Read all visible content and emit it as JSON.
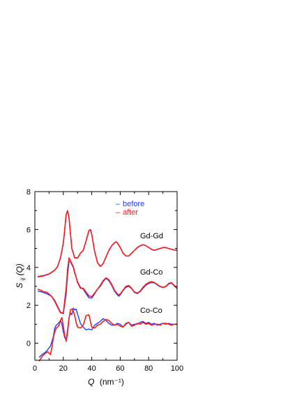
{
  "chart_data": {
    "type": "line",
    "xlabel": "Q",
    "xlabel_unit": "(nm⁻¹)",
    "ylabel": "S",
    "ylabel_sub": "ij",
    "ylabel_arg": "(Q)",
    "xlim": [
      0,
      100
    ],
    "ylim": [
      -0.9,
      8
    ],
    "xticks": [
      0,
      20,
      40,
      60,
      80,
      100
    ],
    "yticks": [
      0,
      2,
      4,
      6,
      8
    ],
    "grid": false,
    "legend_position": "top-right",
    "legend": [
      {
        "name": "before",
        "color": "#1f3fff"
      },
      {
        "name": "after",
        "color": "#ff1a1a"
      }
    ],
    "colors": {
      "before": "#1f3fff",
      "after": "#ff1a1a"
    },
    "curve_labels": [
      {
        "text": "Gd-Gd",
        "x": 86,
        "y": 5.7
      },
      {
        "text": "Gd-Co",
        "x": 86,
        "y": 3.7
      },
      {
        "text": "Co-Co",
        "x": 86,
        "y": 1.2
      }
    ],
    "series": [
      {
        "name": "Gd-Gd after",
        "x": [
          2,
          6,
          10,
          14,
          16,
          18,
          20,
          21,
          22,
          23,
          24,
          25,
          26,
          28,
          30,
          32,
          34,
          36,
          38,
          39,
          40,
          42,
          44,
          46,
          48,
          50,
          52,
          54,
          56,
          57,
          58,
          60,
          62,
          64,
          66,
          68,
          70,
          72,
          74,
          76,
          78,
          80,
          82,
          84,
          86,
          88,
          90,
          92,
          94,
          96,
          98,
          100
        ],
        "y": [
          3.5,
          3.55,
          3.65,
          3.85,
          4.05,
          4.5,
          5.3,
          6.0,
          6.8,
          7.0,
          6.6,
          5.8,
          5.0,
          4.5,
          4.5,
          4.75,
          4.9,
          5.4,
          5.95,
          6.0,
          5.75,
          4.85,
          4.25,
          4.05,
          4.2,
          4.55,
          4.9,
          5.15,
          5.3,
          5.35,
          5.3,
          5.05,
          4.75,
          4.6,
          4.6,
          4.75,
          4.9,
          5.05,
          5.15,
          5.2,
          5.15,
          5.05,
          4.95,
          4.9,
          4.95,
          5.0,
          5.05,
          5.05,
          5.0,
          4.95,
          4.92,
          4.9
        ]
      },
      {
        "name": "Gd-Gd before",
        "x": [
          2,
          6,
          10,
          14,
          16,
          18,
          20,
          21,
          22,
          23,
          24,
          25,
          26,
          28,
          30,
          32,
          34,
          36,
          38,
          39,
          40,
          42,
          44,
          46,
          48,
          50,
          52,
          54,
          56,
          57,
          58,
          60,
          62,
          64,
          66,
          68,
          70,
          72,
          74,
          76,
          78,
          80,
          82,
          84,
          86,
          88,
          90,
          92,
          94,
          96,
          98,
          100
        ],
        "y": [
          3.52,
          3.57,
          3.66,
          3.86,
          4.06,
          4.5,
          5.28,
          5.98,
          6.78,
          6.98,
          6.6,
          5.8,
          5.0,
          4.52,
          4.5,
          4.74,
          4.9,
          5.38,
          5.93,
          5.98,
          5.74,
          4.85,
          4.26,
          4.06,
          4.2,
          4.55,
          4.89,
          5.14,
          5.29,
          5.34,
          5.29,
          5.05,
          4.76,
          4.61,
          4.6,
          4.74,
          4.9,
          5.04,
          5.14,
          5.19,
          5.15,
          5.05,
          4.96,
          4.9,
          4.95,
          5.0,
          5.04,
          5.04,
          5.0,
          4.96,
          4.92,
          4.9
        ]
      },
      {
        "name": "Gd-Co after",
        "x": [
          2,
          4,
          6,
          8,
          10,
          12,
          14,
          16,
          18,
          20,
          22,
          23,
          24,
          25,
          26,
          27,
          28,
          30,
          32,
          34,
          36,
          38,
          40,
          42,
          44,
          46,
          48,
          50,
          52,
          54,
          56,
          58,
          59,
          60,
          62,
          64,
          66,
          68,
          70,
          72,
          74,
          76,
          78,
          80,
          82,
          84,
          86,
          88,
          90,
          92,
          94,
          96,
          98,
          100
        ],
        "y": [
          2.85,
          2.8,
          2.72,
          2.7,
          2.6,
          2.45,
          2.2,
          1.9,
          1.6,
          1.6,
          2.9,
          3.9,
          4.5,
          4.35,
          4.2,
          4.05,
          3.75,
          3.2,
          2.9,
          2.9,
          2.7,
          2.5,
          2.45,
          2.65,
          2.85,
          3.05,
          3.3,
          3.45,
          3.35,
          3.1,
          2.8,
          2.6,
          2.55,
          2.6,
          2.8,
          3.0,
          3.05,
          2.9,
          2.7,
          2.65,
          2.75,
          2.95,
          3.1,
          3.2,
          3.25,
          3.2,
          3.1,
          3.0,
          2.95,
          3.0,
          3.15,
          3.2,
          3.05,
          2.9
        ]
      },
      {
        "name": "Gd-Co before",
        "x": [
          2,
          4,
          6,
          8,
          10,
          12,
          14,
          16,
          18,
          20,
          22,
          23,
          24,
          25,
          26,
          27,
          28,
          30,
          32,
          34,
          36,
          38,
          40,
          42,
          44,
          46,
          48,
          50,
          52,
          54,
          56,
          58,
          59,
          60,
          62,
          64,
          66,
          68,
          70,
          72,
          74,
          76,
          78,
          80,
          82,
          84,
          86,
          88,
          90,
          92,
          94,
          96,
          98,
          100
        ],
        "y": [
          2.75,
          2.72,
          2.68,
          2.62,
          2.55,
          2.45,
          2.25,
          1.95,
          1.65,
          1.55,
          2.6,
          3.6,
          4.3,
          4.3,
          4.15,
          4.0,
          3.7,
          3.25,
          2.95,
          2.85,
          2.62,
          2.4,
          2.38,
          2.6,
          2.85,
          3.0,
          3.25,
          3.42,
          3.3,
          3.05,
          2.75,
          2.55,
          2.48,
          2.55,
          2.78,
          2.95,
          3.0,
          2.88,
          2.68,
          2.62,
          2.72,
          2.9,
          3.05,
          3.15,
          3.2,
          3.18,
          3.08,
          2.98,
          2.94,
          2.98,
          3.12,
          3.18,
          3.02,
          2.88
        ]
      },
      {
        "name": "Co-Co after",
        "x": [
          3,
          5,
          7,
          9,
          11,
          12,
          13,
          14,
          15,
          16,
          17,
          18,
          19,
          20,
          21,
          22,
          23,
          24,
          25,
          26,
          27,
          28,
          29,
          30,
          32,
          34,
          36,
          38,
          40,
          42,
          44,
          46,
          48,
          50,
          52,
          54,
          56,
          58,
          60,
          62,
          64,
          66,
          68,
          70,
          72,
          74,
          76,
          78,
          80,
          82,
          84,
          86,
          88,
          90,
          92,
          94,
          96,
          98,
          100
        ],
        "y": [
          -0.95,
          -0.7,
          -0.55,
          -0.45,
          -0.6,
          -0.2,
          0.3,
          0.6,
          0.8,
          0.85,
          0.95,
          1.2,
          1.35,
          0.9,
          0.4,
          0.1,
          0.55,
          1.3,
          1.75,
          1.8,
          1.7,
          1.45,
          1.1,
          0.85,
          0.8,
          0.95,
          1.45,
          1.5,
          0.85,
          0.8,
          0.95,
          1.0,
          1.15,
          1.25,
          1.2,
          1.05,
          0.95,
          1.0,
          0.9,
          0.85,
          1.05,
          1.1,
          0.9,
          0.95,
          1.05,
          1.0,
          1.1,
          1.0,
          1.05,
          0.95,
          1.0,
          1.0,
          0.95,
          1.05,
          1.05,
          1.0,
          0.95,
          1.0,
          1.0
        ]
      },
      {
        "name": "Co-Co before",
        "x": [
          3,
          5,
          7,
          9,
          11,
          12,
          13,
          14,
          15,
          16,
          17,
          18,
          19,
          20,
          21,
          22,
          23,
          24,
          25,
          26,
          27,
          28,
          29,
          30,
          32,
          34,
          36,
          38,
          40,
          42,
          44,
          46,
          48,
          50,
          52,
          54,
          56,
          58,
          60,
          62,
          64,
          66,
          68,
          70,
          72,
          74,
          76,
          78,
          80,
          82,
          84,
          86,
          88,
          90,
          92,
          94,
          96,
          98,
          100
        ],
        "y": [
          -0.75,
          -0.6,
          -0.5,
          -0.35,
          -0.15,
          0.1,
          0.35,
          0.8,
          0.95,
          1.0,
          1.1,
          1.2,
          1.0,
          0.6,
          0.3,
          0.2,
          0.7,
          1.35,
          1.6,
          1.5,
          1.85,
          1.75,
          1.8,
          1.55,
          1.05,
          0.85,
          0.7,
          0.75,
          0.7,
          0.95,
          1.05,
          1.15,
          1.3,
          1.2,
          1.05,
          0.95,
          0.95,
          1.05,
          1.0,
          0.85,
          1.0,
          1.1,
          0.95,
          1.0,
          1.0,
          1.1,
          1.15,
          1.05,
          1.1,
          1.0,
          1.05,
          0.95,
          1.0,
          1.05,
          1.0,
          1.05,
          1.0,
          1.0,
          1.0
        ]
      }
    ]
  }
}
